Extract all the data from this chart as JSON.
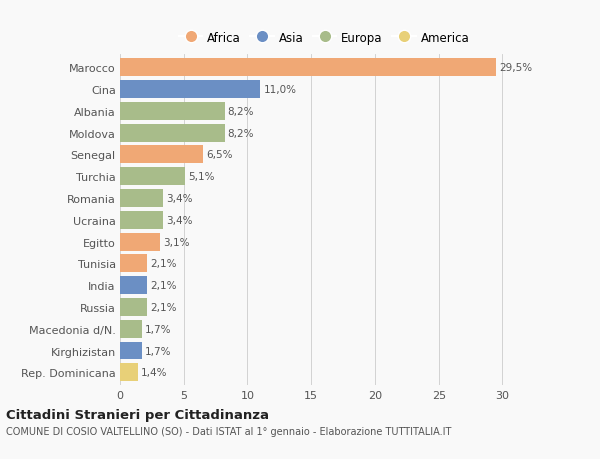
{
  "categories": [
    "Marocco",
    "Cina",
    "Albania",
    "Moldova",
    "Senegal",
    "Turchia",
    "Romania",
    "Ucraina",
    "Egitto",
    "Tunisia",
    "India",
    "Russia",
    "Macedonia d/N.",
    "Kirghizistan",
    "Rep. Dominicana"
  ],
  "values": [
    29.5,
    11.0,
    8.2,
    8.2,
    6.5,
    5.1,
    3.4,
    3.4,
    3.1,
    2.1,
    2.1,
    2.1,
    1.7,
    1.7,
    1.4
  ],
  "labels": [
    "29,5%",
    "11,0%",
    "8,2%",
    "8,2%",
    "6,5%",
    "5,1%",
    "3,4%",
    "3,4%",
    "3,1%",
    "2,1%",
    "2,1%",
    "2,1%",
    "1,7%",
    "1,7%",
    "1,4%"
  ],
  "continents": [
    "Africa",
    "Asia",
    "Europa",
    "Europa",
    "Africa",
    "Europa",
    "Europa",
    "Europa",
    "Africa",
    "Africa",
    "Asia",
    "Europa",
    "Europa",
    "Asia",
    "America"
  ],
  "colors": {
    "Africa": "#f0a875",
    "Asia": "#6b8fc4",
    "Europa": "#a8bc8a",
    "America": "#e8d078"
  },
  "legend_order": [
    "Africa",
    "Asia",
    "Europa",
    "America"
  ],
  "xlim": [
    0,
    32
  ],
  "xticks": [
    0,
    5,
    10,
    15,
    20,
    25,
    30
  ],
  "title": "Cittadini Stranieri per Cittadinanza",
  "subtitle": "COMUNE DI COSIO VALTELLINO (SO) - Dati ISTAT al 1° gennaio - Elaborazione TUTTITALIA.IT",
  "bg_color": "#f9f9f9",
  "bar_height": 0.82,
  "grid_color": "#cccccc"
}
